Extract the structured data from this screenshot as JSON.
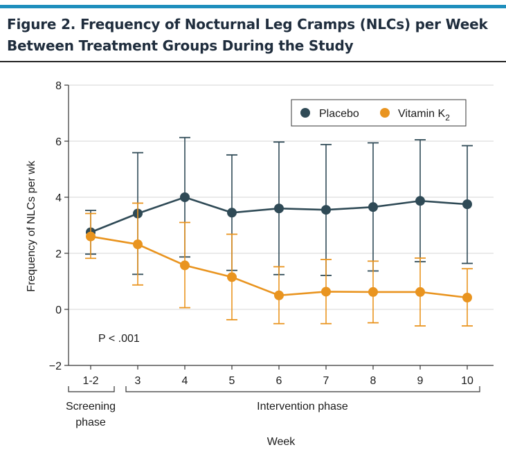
{
  "figure": {
    "title_line1": "Figure 2. Frequency of Nocturnal Leg Cramps (NLCs) per Week",
    "title_line2": "Between Treatment Groups During the Study"
  },
  "chart_data": {
    "type": "line",
    "categories": [
      "1-2",
      "3",
      "4",
      "5",
      "6",
      "7",
      "8",
      "9",
      "10"
    ],
    "xlabel": "Week",
    "ylabel": "Frequency of NLCs per wk",
    "ylim": [
      -2,
      8
    ],
    "yticks": [
      -2,
      0,
      2,
      4,
      6,
      8
    ],
    "ytick_labels": [
      "−2",
      "0",
      "2",
      "4",
      "6",
      "8"
    ],
    "grid": true,
    "legend_position": "top-right",
    "annotation": "P < .001",
    "phases": [
      {
        "label_line1": "Screening",
        "label_line2": "phase",
        "categories": [
          "1-2"
        ]
      },
      {
        "label_line1": "Intervention phase",
        "label_line2": "",
        "categories": [
          "3",
          "4",
          "5",
          "6",
          "7",
          "8",
          "9",
          "10"
        ]
      }
    ],
    "series": [
      {
        "name": "Placebo",
        "color": "#2f4a56",
        "values": [
          2.75,
          3.42,
          4.0,
          3.45,
          3.6,
          3.55,
          3.65,
          3.87,
          3.75
        ],
        "error_low": [
          1.97,
          1.25,
          1.87,
          1.39,
          1.24,
          1.21,
          1.37,
          1.7,
          1.64
        ],
        "error_high": [
          3.53,
          5.59,
          6.13,
          5.51,
          5.97,
          5.88,
          5.94,
          6.05,
          5.84
        ]
      },
      {
        "name": "Vitamin K",
        "name_subscript": "2",
        "color": "#e9941f",
        "values": [
          2.6,
          2.32,
          1.57,
          1.15,
          0.5,
          0.63,
          0.62,
          0.62,
          0.42
        ],
        "error_low": [
          1.82,
          0.87,
          0.06,
          -0.37,
          -0.51,
          -0.51,
          -0.48,
          -0.59,
          -0.59
        ],
        "error_high": [
          3.42,
          3.79,
          3.1,
          2.68,
          1.52,
          1.78,
          1.72,
          1.83,
          1.45
        ]
      }
    ]
  }
}
